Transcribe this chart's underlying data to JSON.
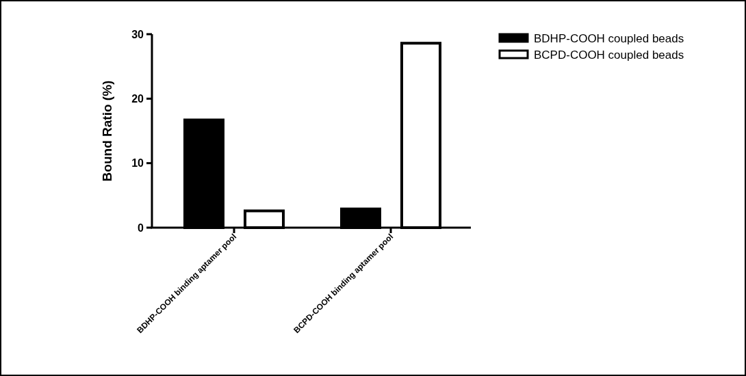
{
  "chart_data": {
    "type": "bar",
    "ylabel": "Bound Ratio (%)",
    "categories": [
      "BDHP-COOH binding aptamer pool",
      "BCPD-COOH binding aptamer pool"
    ],
    "series": [
      {
        "name": "BDHP-COOH coupled beads",
        "color": "#000000",
        "values": [
          16.7,
          2.9
        ]
      },
      {
        "name": "BCPD-COOH coupled beads",
        "color": "#ffffff",
        "values": [
          2.6,
          28.6
        ]
      }
    ],
    "ylim": [
      0,
      30
    ],
    "yticks": [
      0,
      10,
      20,
      30
    ],
    "grid": false,
    "legend": "top right"
  }
}
